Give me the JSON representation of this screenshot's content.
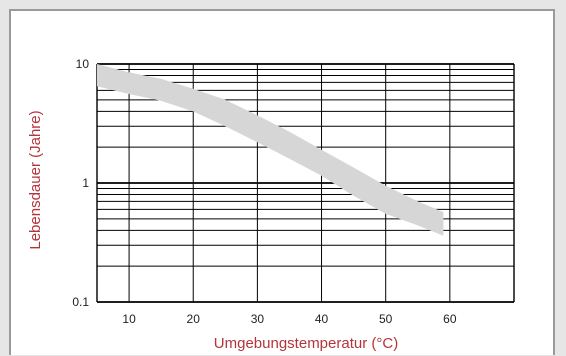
{
  "chart_data": {
    "type": "area",
    "xlabel": "Umgebungstemperatur (°C)",
    "ylabel": "Lebensdauer (Jahre)",
    "x_ticks": [
      10,
      20,
      30,
      40,
      50,
      60
    ],
    "y_ticks": [
      "10",
      "1",
      "0.1"
    ],
    "y_scale": "log",
    "ylim": [
      0.1,
      10
    ],
    "xlim": [
      5,
      70
    ],
    "grid": true,
    "series": [
      {
        "x": [
          5,
          10,
          15,
          20,
          25,
          30,
          35,
          40,
          45,
          50,
          55,
          59
        ],
        "upper": [
          10.0,
          8.5,
          7.5,
          6.2,
          5.0,
          3.7,
          2.7,
          1.9,
          1.35,
          0.95,
          0.7,
          0.57
        ],
        "lower": [
          6.5,
          5.6,
          4.9,
          4.0,
          3.0,
          2.2,
          1.6,
          1.15,
          0.78,
          0.55,
          0.44,
          0.36
        ]
      }
    ],
    "colors": {
      "band": "#d6d6d6",
      "axis_title": "#b5343a",
      "grid": "#000000"
    }
  }
}
